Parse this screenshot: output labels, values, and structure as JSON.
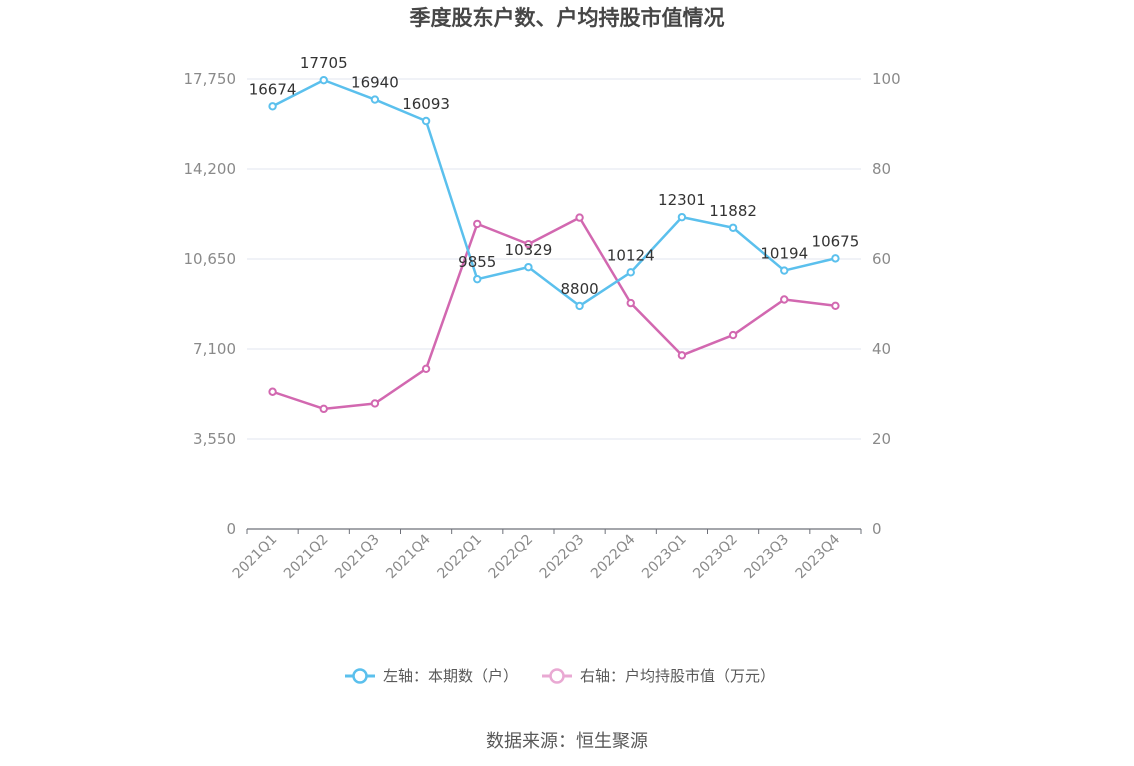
{
  "chart_data": {
    "type": "line",
    "title": "季度股东户数、户均持股市值情况",
    "categories": [
      "2021Q1",
      "2021Q2",
      "2021Q3",
      "2021Q4",
      "2022Q1",
      "2022Q2",
      "2022Q3",
      "2022Q4",
      "2023Q1",
      "2023Q2",
      "2023Q3",
      "2023Q4"
    ],
    "series": [
      {
        "name": "左轴：本期数（户）",
        "axis": "left",
        "color": "#5bc0ed",
        "values": [
          16674,
          17705,
          16940,
          16093,
          9855,
          10329,
          8800,
          10124,
          12301,
          11882,
          10194,
          10675
        ],
        "labels": [
          "16674",
          "17705",
          "16940",
          "16093",
          "9855",
          "10329",
          "8800",
          "10124",
          "12301",
          "11882",
          "10194",
          "10675"
        ]
      },
      {
        "name": "右轴：户均持股市值（万元）",
        "axis": "right",
        "color": "#d268b0",
        "values": [
          30.5,
          26.7,
          27.9,
          35.6,
          67.8,
          63.3,
          69.2,
          50.2,
          38.6,
          43.1,
          51.0,
          49.6
        ]
      }
    ],
    "y_left": {
      "range": [
        0,
        17750
      ],
      "ticks": [
        "0",
        "3,550",
        "7,100",
        "10,650",
        "14,200",
        "17,750"
      ]
    },
    "y_right": {
      "range": [
        0,
        100
      ],
      "ticks": [
        "0",
        "20",
        "40",
        "60",
        "80",
        "100"
      ]
    },
    "grid": true,
    "legend_position": "bottom"
  },
  "source": "数据来源：恒生聚源"
}
